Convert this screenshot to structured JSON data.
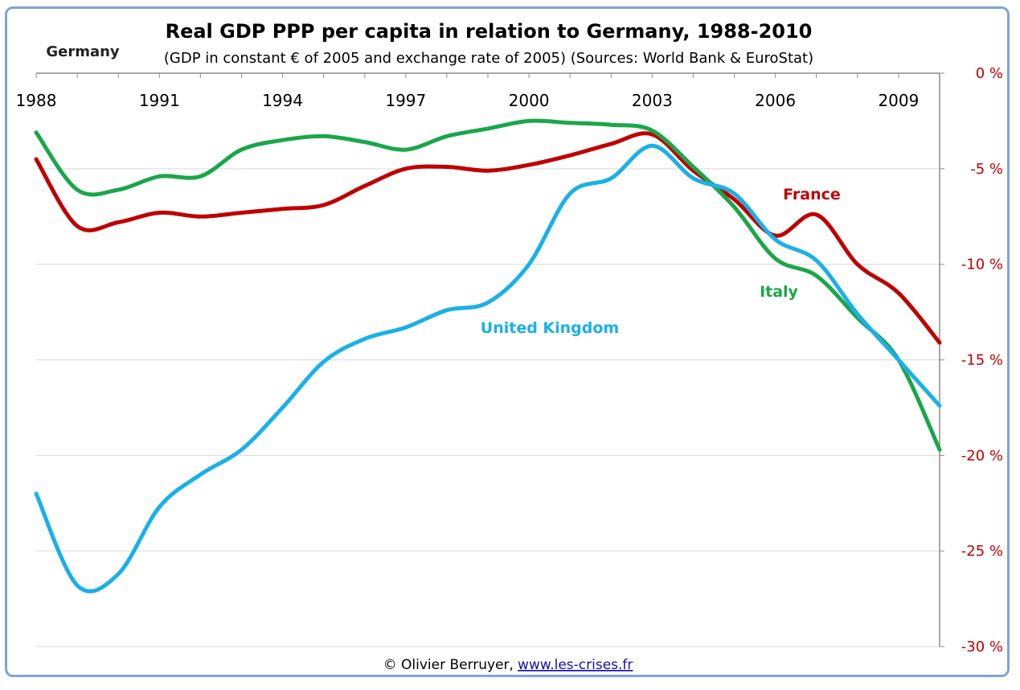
{
  "chart_data": {
    "type": "line",
    "title": "Real GDP PPP per capita in relation to Germany, 1988-2010",
    "subtitle": "(GDP in constant € of 2005 and exchange rate of 2005) (Sources: World Bank & EuroStat)",
    "baseline_label": "Germany",
    "x_ticks": [
      1988,
      1991,
      1994,
      1997,
      2000,
      2003,
      2006,
      2009
    ],
    "xlim": [
      1988,
      2010
    ],
    "ylim": [
      -30,
      0
    ],
    "y_ticks": [
      {
        "value": 0,
        "label": "0 %"
      },
      {
        "value": -5,
        "label": "-5 %"
      },
      {
        "value": -10,
        "label": "-10 %"
      },
      {
        "value": -15,
        "label": "-15 %"
      },
      {
        "value": -20,
        "label": "-20 %"
      },
      {
        "value": -25,
        "label": "-25 %"
      },
      {
        "value": -30,
        "label": "-30 %"
      }
    ],
    "grid": "horizontal",
    "x_axis_position": "top",
    "y_axis_position": "right",
    "series": [
      {
        "name": "France",
        "color": "#c00000",
        "x": [
          1988,
          1989,
          1990,
          1991,
          1992,
          1993,
          1994,
          1995,
          1996,
          1997,
          1998,
          1999,
          2000,
          2001,
          2002,
          2003,
          2004,
          2005,
          2006,
          2007,
          2008,
          2009,
          2010
        ],
        "y": [
          -4.5,
          -8.0,
          -7.8,
          -7.3,
          -7.5,
          -7.3,
          -7.1,
          -6.9,
          -5.9,
          -5.0,
          -4.9,
          -5.1,
          -4.8,
          -4.3,
          -3.7,
          -3.2,
          -5.1,
          -6.6,
          -8.5,
          -7.4,
          -10.0,
          -11.5,
          -14.1
        ]
      },
      {
        "name": "Italy",
        "color": "#1aa64a",
        "x": [
          1988,
          1989,
          1990,
          1991,
          1992,
          1993,
          1994,
          1995,
          1996,
          1997,
          1998,
          1999,
          2000,
          2001,
          2002,
          2003,
          2004,
          2005,
          2006,
          2007,
          2008,
          2009,
          2010
        ],
        "y": [
          -3.1,
          -6.1,
          -6.1,
          -5.4,
          -5.4,
          -4.0,
          -3.5,
          -3.3,
          -3.6,
          -4.0,
          -3.3,
          -2.9,
          -2.5,
          -2.6,
          -2.7,
          -3.0,
          -4.9,
          -7.0,
          -9.7,
          -10.6,
          -12.8,
          -15.0,
          -19.7
        ]
      },
      {
        "name": "United Kingdom",
        "color": "#1ab0e8",
        "x": [
          1988,
          1989,
          1990,
          1991,
          1992,
          1993,
          1994,
          1995,
          1996,
          1997,
          1998,
          1999,
          2000,
          2001,
          2002,
          2003,
          2004,
          2005,
          2006,
          2007,
          2008,
          2009,
          2010
        ],
        "y": [
          -22.0,
          -26.8,
          -26.2,
          -22.7,
          -21.0,
          -19.7,
          -17.5,
          -15.1,
          -13.9,
          -13.3,
          -12.4,
          -12.0,
          -10.0,
          -6.3,
          -5.5,
          -3.8,
          -5.5,
          -6.3,
          -8.7,
          -9.8,
          -12.6,
          -15.0,
          -17.4
        ]
      }
    ],
    "series_labels": [
      {
        "name": "France",
        "color": "#c00000"
      },
      {
        "name": "Italy",
        "color": "#1aa64a"
      },
      {
        "name": "United Kingdom",
        "color": "#1ab0e8"
      }
    ],
    "credit": {
      "author": "© Olivier Berruyer,",
      "link": "www.les-crises.fr"
    }
  }
}
